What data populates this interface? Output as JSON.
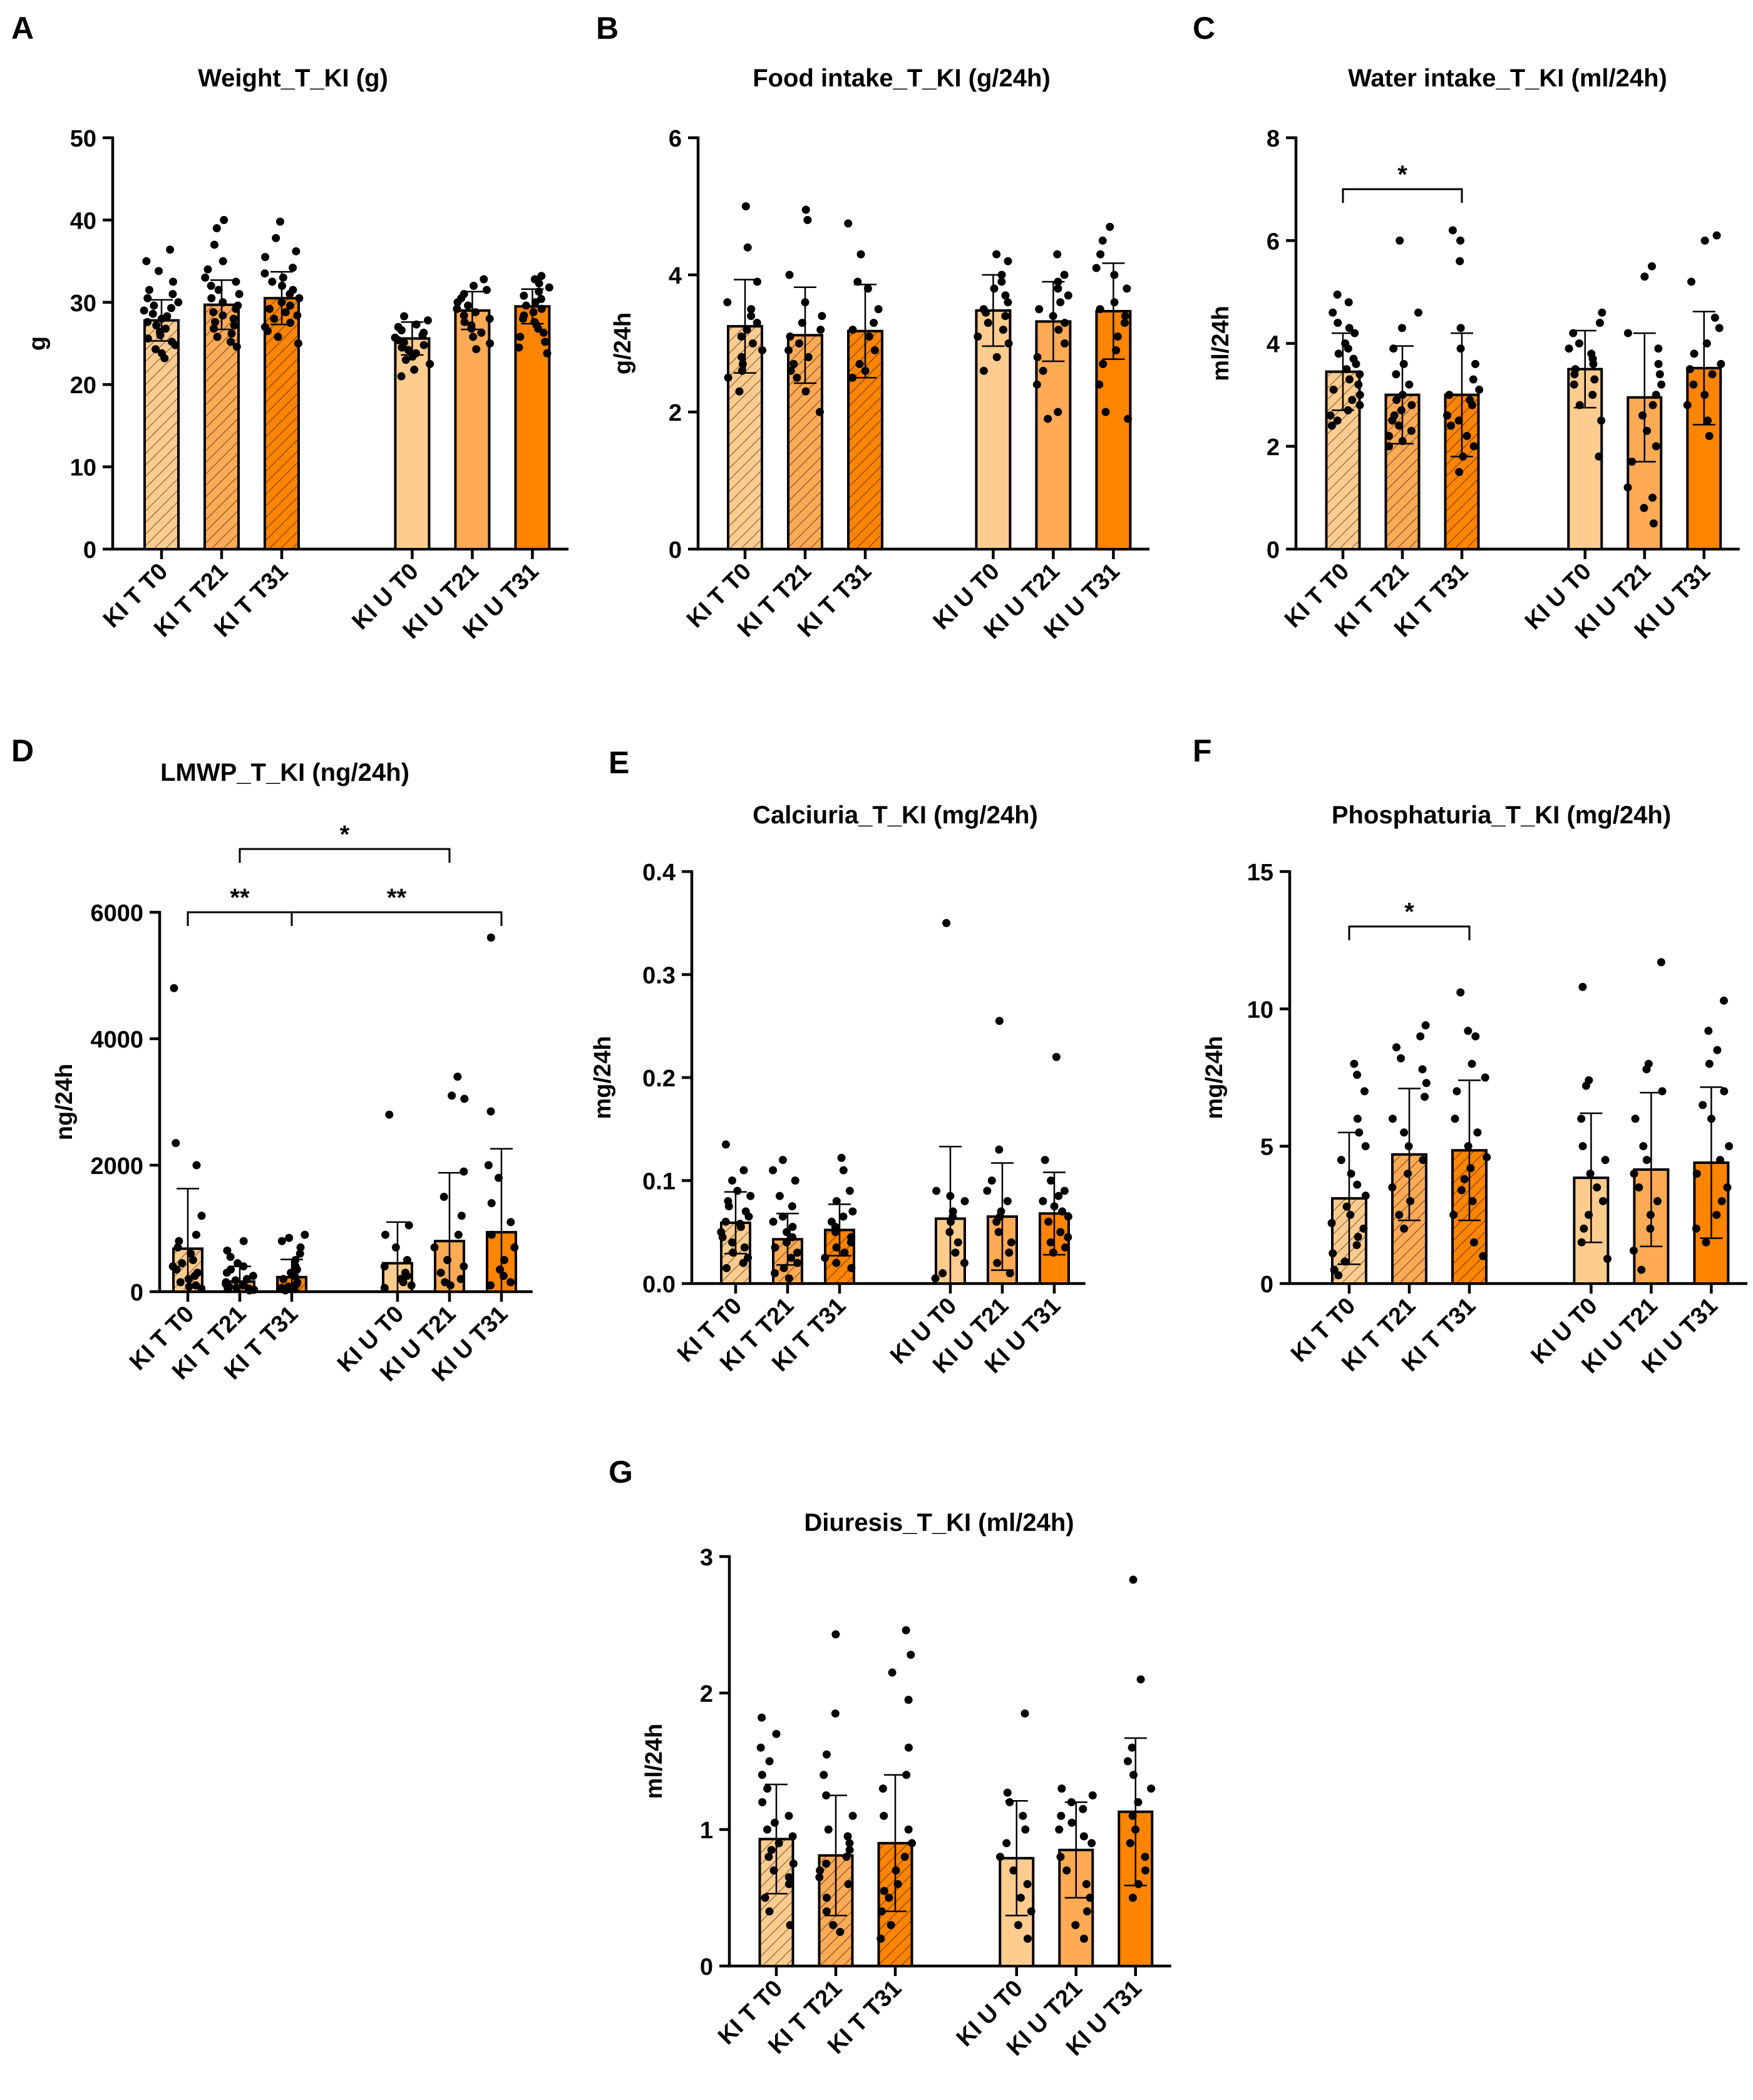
{
  "colors": {
    "T0": "#FFCC8F",
    "T21": "#FFAA55",
    "T31": "#FF8400",
    "stroke": "#000000"
  },
  "chart_data": [
    {
      "panel": "A",
      "type": "bar",
      "title": "Weight_T_KI (g)",
      "ylabel": "g",
      "ylim": [
        0,
        50
      ],
      "yticks": [
        "0",
        "10",
        "20",
        "30",
        "40",
        "50"
      ],
      "categories": [
        "KI T T0",
        "KI T T21",
        "KI T T31",
        "KI U T0",
        "KI U T21",
        "KI U T31"
      ],
      "hatched": [
        true,
        true,
        true,
        false,
        false,
        false
      ],
      "values": [
        27.8,
        29.7,
        30.5,
        25.6,
        29.0,
        29.5
      ],
      "sd": [
        2.5,
        3.0,
        3.2,
        2.0,
        2.3,
        2.1
      ],
      "points": [
        [
          36.4,
          35.0,
          33.8,
          32.5,
          31.5,
          31.0,
          30.5,
          30.0,
          29.6,
          29.3,
          29.0,
          28.6,
          28.3,
          28.0,
          27.6,
          27.2,
          26.8,
          26.4,
          26.0,
          25.6,
          25.2,
          24.8,
          24.3,
          23.8,
          23.2
        ],
        [
          40.0,
          39.0,
          37.0,
          35.0,
          34.0,
          33.0,
          32.5,
          32.0,
          31.5,
          31.0,
          30.5,
          30.0,
          29.6,
          29.2,
          28.8,
          28.4,
          28.0,
          27.6,
          27.2,
          26.8,
          26.2,
          25.8,
          25.2,
          24.6
        ],
        [
          39.8,
          37.8,
          36.2,
          35.5,
          34.2,
          33.5,
          33.0,
          32.5,
          32.0,
          31.5,
          31.0,
          30.5,
          30.0,
          29.6,
          29.2,
          28.8,
          28.4,
          28.0,
          27.5,
          27.0,
          26.5,
          25.8,
          25.0
        ],
        [
          28.3,
          27.8,
          27.3,
          27.0,
          26.6,
          26.3,
          26.0,
          25.7,
          25.4,
          25.1,
          24.8,
          24.5,
          24.2,
          23.8,
          23.4,
          23.0,
          22.5,
          21.8,
          21.0
        ],
        [
          32.8,
          32.0,
          31.5,
          31.0,
          30.5,
          30.0,
          29.6,
          29.2,
          28.8,
          28.4,
          28.0,
          27.6,
          27.2,
          26.8,
          26.3,
          25.8,
          25.0,
          24.3
        ],
        [
          33.2,
          32.8,
          32.3,
          31.8,
          31.3,
          30.8,
          30.4,
          30.0,
          29.6,
          29.2,
          28.8,
          28.4,
          28.0,
          27.6,
          27.2,
          26.8,
          26.3,
          25.8,
          25.2,
          24.5,
          23.8
        ]
      ],
      "sig": []
    },
    {
      "panel": "B",
      "type": "bar",
      "title": "Food intake_T_KI (g/24h)",
      "ylabel": "g/24h",
      "ylim": [
        0,
        6
      ],
      "yticks": [
        "0",
        "2",
        "4",
        "6"
      ],
      "categories": [
        "KI T T0",
        "KI T T21",
        "KI T T31",
        "KI U T0",
        "KI U T21",
        "KI U T31"
      ],
      "hatched": [
        true,
        true,
        true,
        false,
        false,
        false
      ],
      "values": [
        3.25,
        3.12,
        3.18,
        3.48,
        3.32,
        3.47
      ],
      "sd": [
        0.68,
        0.7,
        0.68,
        0.52,
        0.58,
        0.7
      ],
      "points": [
        [
          5.0,
          4.4,
          3.9,
          3.6,
          3.5,
          3.4,
          3.3,
          3.2,
          3.1,
          3.0,
          2.9,
          2.8,
          2.7,
          2.6,
          2.5,
          2.3
        ],
        [
          4.95,
          4.8,
          4.0,
          3.6,
          3.4,
          3.3,
          3.2,
          3.1,
          3.0,
          2.9,
          2.8,
          2.7,
          2.6,
          2.5,
          2.3,
          2.0
        ],
        [
          4.75,
          4.3,
          3.9,
          3.8,
          3.5,
          3.3,
          3.2,
          3.1,
          2.9,
          2.7,
          2.6,
          2.5
        ],
        [
          4.3,
          4.2,
          4.0,
          3.9,
          3.8,
          3.7,
          3.6,
          3.5,
          3.45,
          3.4,
          3.3,
          3.2,
          3.1,
          3.0,
          2.8,
          2.6
        ],
        [
          4.3,
          4.0,
          3.9,
          3.8,
          3.7,
          3.6,
          3.5,
          3.4,
          3.3,
          3.2,
          3.0,
          2.8,
          2.6,
          2.4,
          2.0,
          1.9
        ],
        [
          4.7,
          4.5,
          4.3,
          4.1,
          4.0,
          3.8,
          3.6,
          3.5,
          3.4,
          3.3,
          3.1,
          2.9,
          2.7,
          2.4,
          2.0,
          1.9
        ]
      ],
      "sig": []
    },
    {
      "panel": "C",
      "type": "bar",
      "title": "Water intake_T_KI (ml/24h)",
      "ylabel": "ml/24h",
      "ylim": [
        0,
        8
      ],
      "yticks": [
        "0",
        "2",
        "4",
        "6",
        "8"
      ],
      "categories": [
        "KI T T0",
        "KI T T21",
        "KI T T31",
        "KI U T0",
        "KI U T21",
        "KI U T31"
      ],
      "hatched": [
        true,
        true,
        true,
        false,
        false,
        false
      ],
      "values": [
        3.45,
        3.0,
        3.0,
        3.5,
        2.95,
        3.52
      ],
      "sd": [
        0.75,
        0.95,
        1.2,
        0.75,
        1.25,
        1.1
      ],
      "points": [
        [
          4.95,
          4.8,
          4.6,
          4.4,
          4.3,
          4.2,
          4.0,
          3.9,
          3.8,
          3.7,
          3.6,
          3.5,
          3.4,
          3.3,
          3.2,
          3.1,
          3.0,
          2.9,
          2.8,
          2.7,
          2.6,
          2.5,
          2.4
        ],
        [
          6.0,
          4.6,
          4.3,
          3.9,
          3.6,
          3.4,
          3.2,
          3.0,
          2.9,
          2.8,
          2.7,
          2.6,
          2.5,
          2.4,
          2.3,
          2.2,
          2.1,
          2.0
        ],
        [
          6.2,
          6.0,
          5.6,
          4.3,
          3.9,
          3.6,
          3.3,
          3.1,
          3.0,
          2.9,
          2.8,
          2.6,
          2.5,
          2.4,
          2.2,
          2.0,
          1.8,
          1.5
        ],
        [
          4.6,
          4.4,
          4.2,
          4.0,
          3.9,
          3.8,
          3.7,
          3.6,
          3.5,
          3.4,
          3.3,
          3.2,
          3.0,
          2.8,
          2.5,
          1.8
        ],
        [
          5.5,
          5.3,
          4.2,
          3.9,
          3.6,
          3.4,
          3.2,
          3.0,
          2.8,
          2.6,
          2.3,
          2.0,
          1.7,
          1.2,
          1.0,
          0.8,
          0.5
        ],
        [
          6.1,
          6.0,
          5.2,
          4.5,
          4.3,
          4.0,
          3.8,
          3.6,
          3.5,
          3.4,
          3.2,
          3.0,
          2.8,
          2.5,
          2.2
        ]
      ],
      "sig": [
        {
          "from": 0,
          "to": 2,
          "y": 7.0,
          "label": "*"
        }
      ]
    },
    {
      "panel": "D",
      "type": "bar",
      "title": "LMWP_T_KI (ng/24h)",
      "ylabel": "ng/24h",
      "ylim": [
        0,
        6000
      ],
      "yticks": [
        "0",
        "2000",
        "4000",
        "6000"
      ],
      "categories": [
        "KI T T0",
        "KI T T21",
        "KI T T31",
        "KI U T0",
        "KI U T21",
        "KI U T31"
      ],
      "hatched": [
        true,
        true,
        true,
        false,
        false,
        false
      ],
      "values": [
        680,
        160,
        230,
        450,
        800,
        940
      ],
      "sd": [
        950,
        240,
        280,
        650,
        1080,
        1320
      ],
      "points": [
        [
          4800,
          2350,
          2000,
          1200,
          900,
          800,
          700,
          600,
          500,
          450,
          400,
          350,
          300,
          250,
          200,
          150,
          100,
          80,
          50
        ],
        [
          800,
          650,
          550,
          450,
          400,
          350,
          300,
          250,
          200,
          180,
          150,
          120,
          100,
          80,
          60,
          50,
          40,
          30,
          20
        ],
        [
          900,
          850,
          800,
          700,
          600,
          500,
          400,
          350,
          300,
          250,
          200,
          150,
          120,
          100,
          80,
          60,
          40,
          20
        ],
        [
          2800,
          1050,
          900,
          700,
          500,
          400,
          300,
          250,
          200,
          150,
          100,
          60
        ],
        [
          3400,
          3100,
          3050,
          1900,
          1500,
          1200,
          900,
          700,
          500,
          400,
          300,
          200,
          150,
          100
        ],
        [
          5600,
          2850,
          2000,
          1800,
          1400,
          1100,
          900,
          700,
          500,
          350,
          250,
          150,
          100
        ]
      ],
      "sig": [
        {
          "from": 0,
          "to": 2,
          "y": 6000,
          "label": "**"
        },
        {
          "from": 2,
          "to": 5,
          "y": 6000,
          "label": "**"
        },
        {
          "from": 1,
          "to": 4,
          "y": 7000,
          "label": "*"
        }
      ]
    },
    {
      "panel": "E",
      "type": "bar",
      "title": "Calciuria_T_KI (mg/24h)",
      "ylabel": "mg/24h",
      "ylim": [
        0,
        0.4
      ],
      "yticks": [
        "0.0",
        "0.1",
        "0.2",
        "0.3",
        "0.4"
      ],
      "categories": [
        "KI T T0",
        "KI T T21",
        "KI T T31",
        "KI U T0",
        "KI U T21",
        "KI U T31"
      ],
      "hatched": [
        true,
        true,
        true,
        false,
        false,
        false
      ],
      "values": [
        0.059,
        0.043,
        0.052,
        0.063,
        0.065,
        0.068
      ],
      "sd": [
        0.03,
        0.025,
        0.025,
        0.07,
        0.052,
        0.04
      ],
      "points": [
        [
          0.135,
          0.11,
          0.1,
          0.09,
          0.085,
          0.08,
          0.075,
          0.07,
          0.065,
          0.06,
          0.058,
          0.055,
          0.05,
          0.045,
          0.04,
          0.035,
          0.03,
          0.025,
          0.02,
          0.015
        ],
        [
          0.12,
          0.11,
          0.1,
          0.085,
          0.075,
          0.065,
          0.06,
          0.055,
          0.05,
          0.045,
          0.04,
          0.035,
          0.03,
          0.025,
          0.02,
          0.015,
          0.01,
          0.005
        ],
        [
          0.122,
          0.11,
          0.09,
          0.08,
          0.07,
          0.065,
          0.06,
          0.055,
          0.05,
          0.045,
          0.04,
          0.035,
          0.03,
          0.025,
          0.02,
          0.015
        ],
        [
          0.35,
          0.09,
          0.085,
          0.08,
          0.07,
          0.065,
          0.06,
          0.05,
          0.04,
          0.03,
          0.02,
          0.01,
          0.005
        ],
        [
          0.255,
          0.13,
          0.1,
          0.09,
          0.08,
          0.07,
          0.065,
          0.06,
          0.05,
          0.04,
          0.03,
          0.02,
          0.01
        ],
        [
          0.22,
          0.12,
          0.1,
          0.09,
          0.085,
          0.08,
          0.075,
          0.07,
          0.065,
          0.06,
          0.05,
          0.045,
          0.04,
          0.035,
          0.03
        ]
      ],
      "sig": []
    },
    {
      "panel": "F",
      "type": "bar",
      "title": "Phosphaturia_T_KI (mg/24h)",
      "ylabel": "mg/24h",
      "ylim": [
        0,
        15
      ],
      "yticks": [
        "0",
        "5",
        "10",
        "15"
      ],
      "categories": [
        "KI T T0",
        "KI T T21",
        "KI T T31",
        "KI U T0",
        "KI U T21",
        "KI U T31"
      ],
      "hatched": [
        true,
        true,
        true,
        false,
        false,
        false
      ],
      "values": [
        3.1,
        4.7,
        4.85,
        3.85,
        4.15,
        4.4
      ],
      "sd": [
        2.4,
        2.4,
        2.55,
        2.35,
        2.8,
        2.75
      ],
      "points": [
        [
          8.0,
          7.6,
          7.0,
          6.0,
          5.5,
          5.0,
          4.5,
          4.0,
          3.6,
          3.2,
          2.8,
          2.5,
          2.2,
          2.0,
          1.7,
          1.4,
          1.1,
          0.8,
          0.5,
          0.3
        ],
        [
          9.4,
          9.0,
          8.6,
          8.2,
          7.8,
          7.3,
          6.8,
          6.0,
          5.5,
          5.0,
          4.5,
          4.0,
          3.5,
          3.0,
          2.5,
          2.0
        ],
        [
          10.6,
          9.2,
          9.0,
          8.0,
          7.5,
          7.0,
          6.0,
          5.5,
          5.0,
          4.6,
          4.2,
          3.8,
          3.4,
          3.0,
          2.5,
          1.5,
          1.0
        ],
        [
          10.8,
          7.4,
          7.2,
          6.0,
          5.0,
          4.5,
          4.0,
          3.5,
          3.0,
          2.5,
          2.0,
          1.5,
          0.9
        ],
        [
          11.7,
          8.0,
          7.8,
          7.0,
          6.0,
          5.0,
          4.5,
          4.0,
          3.5,
          3.0,
          2.5,
          2.0,
          1.2,
          0.5
        ],
        [
          10.3,
          9.2,
          8.5,
          8.0,
          7.0,
          6.5,
          6.0,
          5.0,
          4.5,
          4.0,
          3.5,
          3.0,
          2.5,
          2.0,
          1.5
        ]
      ],
      "sig": [
        {
          "from": 0,
          "to": 2,
          "y": 13.0,
          "label": "*"
        }
      ]
    },
    {
      "panel": "G",
      "type": "bar",
      "title": "Diuresis_T_KI (ml/24h)",
      "ylabel": "ml/24h",
      "ylim": [
        0,
        3
      ],
      "yticks": [
        "0",
        "1",
        "2",
        "3"
      ],
      "categories": [
        "KI T T0",
        "KI T T21",
        "KI T T31",
        "KI U T0",
        "KI U T21",
        "KI U T31"
      ],
      "hatched": [
        true,
        true,
        true,
        false,
        false,
        false
      ],
      "values": [
        0.93,
        0.81,
        0.9,
        0.79,
        0.85,
        1.13
      ],
      "sd": [
        0.4,
        0.44,
        0.5,
        0.42,
        0.35,
        0.54
      ],
      "points": [
        [
          1.82,
          1.7,
          1.6,
          1.5,
          1.4,
          1.3,
          1.2,
          1.1,
          1.05,
          1.0,
          0.95,
          0.9,
          0.85,
          0.8,
          0.75,
          0.7,
          0.65,
          0.6,
          0.5,
          0.4,
          0.3
        ],
        [
          2.43,
          1.85,
          1.55,
          1.4,
          1.25,
          1.1,
          1.0,
          0.95,
          0.9,
          0.85,
          0.8,
          0.75,
          0.7,
          0.65,
          0.6,
          0.5,
          0.4,
          0.3,
          0.25
        ],
        [
          2.46,
          2.28,
          2.15,
          1.95,
          1.6,
          1.4,
          1.3,
          1.1,
          1.0,
          0.9,
          0.8,
          0.7,
          0.6,
          0.55,
          0.5,
          0.4,
          0.3,
          0.2
        ],
        [
          1.85,
          1.27,
          1.2,
          1.1,
          1.0,
          0.9,
          0.8,
          0.7,
          0.6,
          0.5,
          0.4,
          0.3,
          0.2
        ],
        [
          1.3,
          1.25,
          1.2,
          1.15,
          1.1,
          1.05,
          1.0,
          0.95,
          0.9,
          0.8,
          0.7,
          0.6,
          0.5,
          0.4,
          0.3,
          0.2
        ],
        [
          2.83,
          2.1,
          1.6,
          1.5,
          1.4,
          1.3,
          1.2,
          1.1,
          1.0,
          0.9,
          0.8,
          0.7,
          0.6,
          0.5
        ]
      ],
      "sig": []
    }
  ]
}
